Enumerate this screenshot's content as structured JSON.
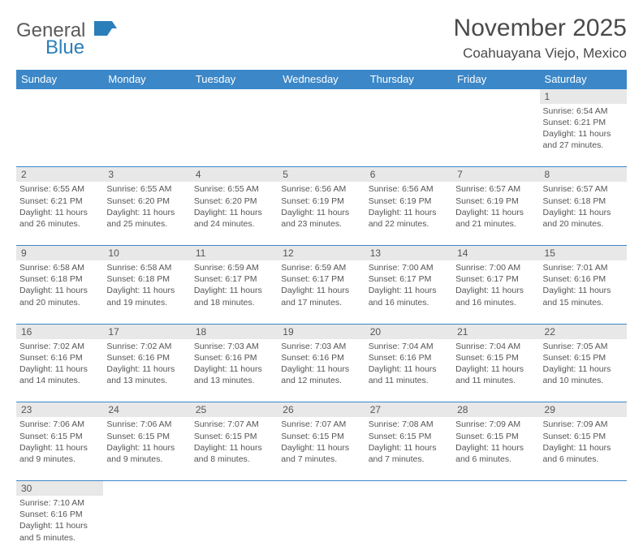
{
  "logo": {
    "text1": "General",
    "text2": "Blue",
    "brand_color": "#2a7fba"
  },
  "header": {
    "month": "November 2025",
    "location": "Coahuayana Viejo, Mexico"
  },
  "colors": {
    "header_bg": "#3b87c8",
    "header_text": "#ffffff",
    "daynum_bg": "#e8e8e8",
    "border": "#3b87c8",
    "text": "#555555"
  },
  "weekdays": [
    "Sunday",
    "Monday",
    "Tuesday",
    "Wednesday",
    "Thursday",
    "Friday",
    "Saturday"
  ],
  "weeks": [
    {
      "nums": [
        "",
        "",
        "",
        "",
        "",
        "",
        "1"
      ],
      "cells": [
        null,
        null,
        null,
        null,
        null,
        null,
        {
          "sunrise": "Sunrise: 6:54 AM",
          "sunset": "Sunset: 6:21 PM",
          "day1": "Daylight: 11 hours",
          "day2": "and 27 minutes."
        }
      ]
    },
    {
      "nums": [
        "2",
        "3",
        "4",
        "5",
        "6",
        "7",
        "8"
      ],
      "cells": [
        {
          "sunrise": "Sunrise: 6:55 AM",
          "sunset": "Sunset: 6:21 PM",
          "day1": "Daylight: 11 hours",
          "day2": "and 26 minutes."
        },
        {
          "sunrise": "Sunrise: 6:55 AM",
          "sunset": "Sunset: 6:20 PM",
          "day1": "Daylight: 11 hours",
          "day2": "and 25 minutes."
        },
        {
          "sunrise": "Sunrise: 6:55 AM",
          "sunset": "Sunset: 6:20 PM",
          "day1": "Daylight: 11 hours",
          "day2": "and 24 minutes."
        },
        {
          "sunrise": "Sunrise: 6:56 AM",
          "sunset": "Sunset: 6:19 PM",
          "day1": "Daylight: 11 hours",
          "day2": "and 23 minutes."
        },
        {
          "sunrise": "Sunrise: 6:56 AM",
          "sunset": "Sunset: 6:19 PM",
          "day1": "Daylight: 11 hours",
          "day2": "and 22 minutes."
        },
        {
          "sunrise": "Sunrise: 6:57 AM",
          "sunset": "Sunset: 6:19 PM",
          "day1": "Daylight: 11 hours",
          "day2": "and 21 minutes."
        },
        {
          "sunrise": "Sunrise: 6:57 AM",
          "sunset": "Sunset: 6:18 PM",
          "day1": "Daylight: 11 hours",
          "day2": "and 20 minutes."
        }
      ]
    },
    {
      "nums": [
        "9",
        "10",
        "11",
        "12",
        "13",
        "14",
        "15"
      ],
      "cells": [
        {
          "sunrise": "Sunrise: 6:58 AM",
          "sunset": "Sunset: 6:18 PM",
          "day1": "Daylight: 11 hours",
          "day2": "and 20 minutes."
        },
        {
          "sunrise": "Sunrise: 6:58 AM",
          "sunset": "Sunset: 6:18 PM",
          "day1": "Daylight: 11 hours",
          "day2": "and 19 minutes."
        },
        {
          "sunrise": "Sunrise: 6:59 AM",
          "sunset": "Sunset: 6:17 PM",
          "day1": "Daylight: 11 hours",
          "day2": "and 18 minutes."
        },
        {
          "sunrise": "Sunrise: 6:59 AM",
          "sunset": "Sunset: 6:17 PM",
          "day1": "Daylight: 11 hours",
          "day2": "and 17 minutes."
        },
        {
          "sunrise": "Sunrise: 7:00 AM",
          "sunset": "Sunset: 6:17 PM",
          "day1": "Daylight: 11 hours",
          "day2": "and 16 minutes."
        },
        {
          "sunrise": "Sunrise: 7:00 AM",
          "sunset": "Sunset: 6:17 PM",
          "day1": "Daylight: 11 hours",
          "day2": "and 16 minutes."
        },
        {
          "sunrise": "Sunrise: 7:01 AM",
          "sunset": "Sunset: 6:16 PM",
          "day1": "Daylight: 11 hours",
          "day2": "and 15 minutes."
        }
      ]
    },
    {
      "nums": [
        "16",
        "17",
        "18",
        "19",
        "20",
        "21",
        "22"
      ],
      "cells": [
        {
          "sunrise": "Sunrise: 7:02 AM",
          "sunset": "Sunset: 6:16 PM",
          "day1": "Daylight: 11 hours",
          "day2": "and 14 minutes."
        },
        {
          "sunrise": "Sunrise: 7:02 AM",
          "sunset": "Sunset: 6:16 PM",
          "day1": "Daylight: 11 hours",
          "day2": "and 13 minutes."
        },
        {
          "sunrise": "Sunrise: 7:03 AM",
          "sunset": "Sunset: 6:16 PM",
          "day1": "Daylight: 11 hours",
          "day2": "and 13 minutes."
        },
        {
          "sunrise": "Sunrise: 7:03 AM",
          "sunset": "Sunset: 6:16 PM",
          "day1": "Daylight: 11 hours",
          "day2": "and 12 minutes."
        },
        {
          "sunrise": "Sunrise: 7:04 AM",
          "sunset": "Sunset: 6:16 PM",
          "day1": "Daylight: 11 hours",
          "day2": "and 11 minutes."
        },
        {
          "sunrise": "Sunrise: 7:04 AM",
          "sunset": "Sunset: 6:15 PM",
          "day1": "Daylight: 11 hours",
          "day2": "and 11 minutes."
        },
        {
          "sunrise": "Sunrise: 7:05 AM",
          "sunset": "Sunset: 6:15 PM",
          "day1": "Daylight: 11 hours",
          "day2": "and 10 minutes."
        }
      ]
    },
    {
      "nums": [
        "23",
        "24",
        "25",
        "26",
        "27",
        "28",
        "29"
      ],
      "cells": [
        {
          "sunrise": "Sunrise: 7:06 AM",
          "sunset": "Sunset: 6:15 PM",
          "day1": "Daylight: 11 hours",
          "day2": "and 9 minutes."
        },
        {
          "sunrise": "Sunrise: 7:06 AM",
          "sunset": "Sunset: 6:15 PM",
          "day1": "Daylight: 11 hours",
          "day2": "and 9 minutes."
        },
        {
          "sunrise": "Sunrise: 7:07 AM",
          "sunset": "Sunset: 6:15 PM",
          "day1": "Daylight: 11 hours",
          "day2": "and 8 minutes."
        },
        {
          "sunrise": "Sunrise: 7:07 AM",
          "sunset": "Sunset: 6:15 PM",
          "day1": "Daylight: 11 hours",
          "day2": "and 7 minutes."
        },
        {
          "sunrise": "Sunrise: 7:08 AM",
          "sunset": "Sunset: 6:15 PM",
          "day1": "Daylight: 11 hours",
          "day2": "and 7 minutes."
        },
        {
          "sunrise": "Sunrise: 7:09 AM",
          "sunset": "Sunset: 6:15 PM",
          "day1": "Daylight: 11 hours",
          "day2": "and 6 minutes."
        },
        {
          "sunrise": "Sunrise: 7:09 AM",
          "sunset": "Sunset: 6:15 PM",
          "day1": "Daylight: 11 hours",
          "day2": "and 6 minutes."
        }
      ]
    },
    {
      "nums": [
        "30",
        "",
        "",
        "",
        "",
        "",
        ""
      ],
      "cells": [
        {
          "sunrise": "Sunrise: 7:10 AM",
          "sunset": "Sunset: 6:16 PM",
          "day1": "Daylight: 11 hours",
          "day2": "and 5 minutes."
        },
        null,
        null,
        null,
        null,
        null,
        null
      ]
    }
  ]
}
